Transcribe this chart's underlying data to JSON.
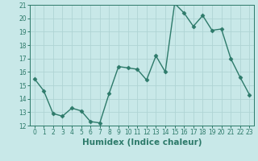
{
  "xlabel": "Humidex (Indice chaleur)",
  "x": [
    0,
    1,
    2,
    3,
    4,
    5,
    6,
    7,
    8,
    9,
    10,
    11,
    12,
    13,
    14,
    15,
    16,
    17,
    18,
    19,
    20,
    21,
    22,
    23
  ],
  "y": [
    15.5,
    14.6,
    12.9,
    12.7,
    13.3,
    13.1,
    12.3,
    12.2,
    14.4,
    16.4,
    16.3,
    16.2,
    15.4,
    17.2,
    16.0,
    21.1,
    20.4,
    19.4,
    20.2,
    19.1,
    19.2,
    17.0,
    15.6,
    14.3
  ],
  "line_color": "#2d7a6a",
  "marker": "D",
  "marker_size": 2.5,
  "bg_color": "#c8e8e8",
  "grid_color": "#afd4d4",
  "ylim": [
    12,
    21
  ],
  "xlim": [
    -0.5,
    23.5
  ],
  "yticks": [
    12,
    13,
    14,
    15,
    16,
    17,
    18,
    19,
    20,
    21
  ],
  "xticks": [
    0,
    1,
    2,
    3,
    4,
    5,
    6,
    7,
    8,
    9,
    10,
    11,
    12,
    13,
    14,
    15,
    16,
    17,
    18,
    19,
    20,
    21,
    22,
    23
  ],
  "tick_fontsize": 5.5,
  "label_fontsize": 7.5,
  "line_width": 1.0
}
